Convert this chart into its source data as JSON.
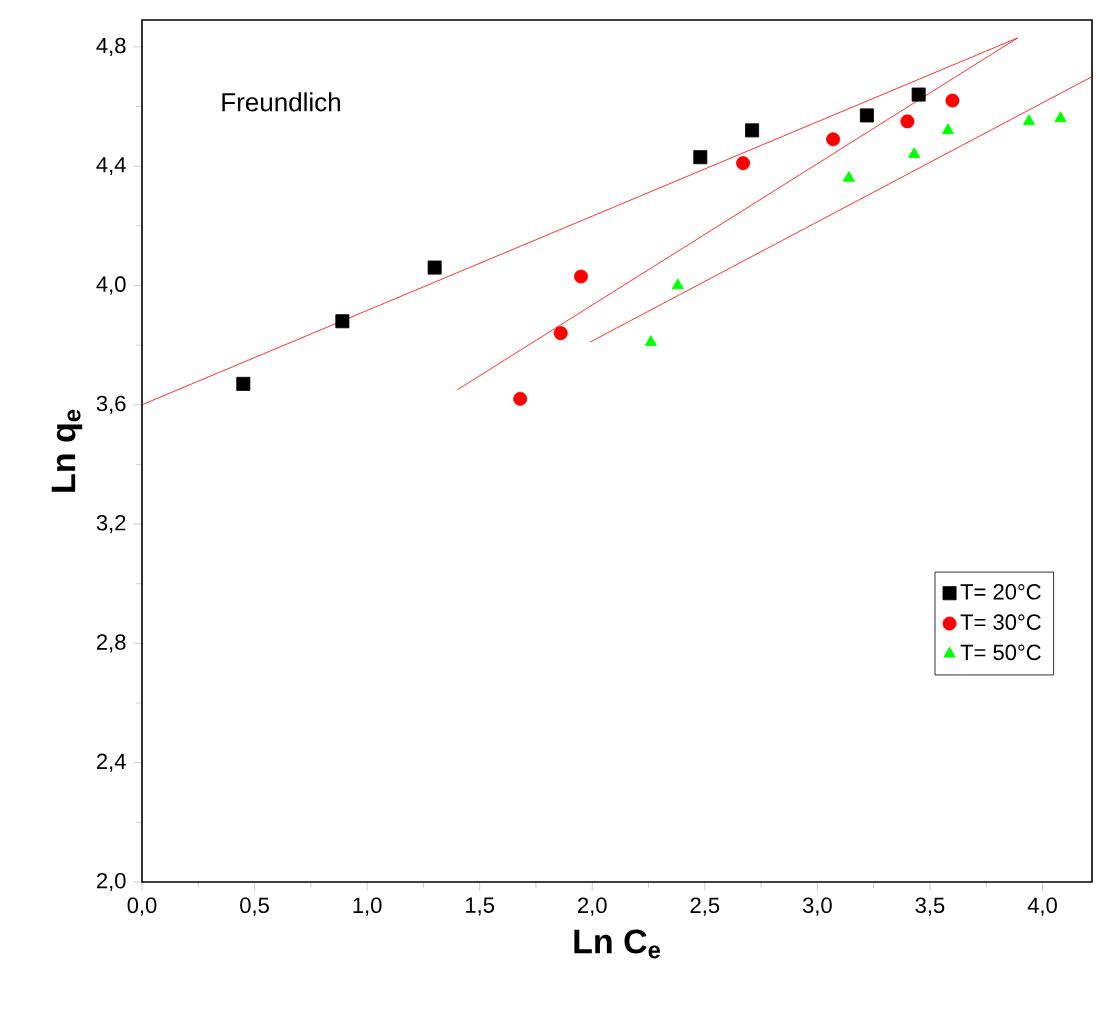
{
  "chart_data": {
    "type": "scatter",
    "xlabel": "Ln C$_{e}$",
    "ylabel": "Ln q$_{e}$",
    "annotations": [
      "Freundlich"
    ],
    "xlim": [
      0,
      4.22
    ],
    "ylim": [
      2.0,
      4.89
    ],
    "xticks": [
      {
        "value": 0,
        "label": "0,0"
      },
      {
        "value": 0.5,
        "label": "0,5"
      },
      {
        "value": 1,
        "label": "1,0"
      },
      {
        "value": 1.5,
        "label": "1,5"
      },
      {
        "value": 2,
        "label": "2,0"
      },
      {
        "value": 2.5,
        "label": "2,5"
      },
      {
        "value": 3,
        "label": "3,0"
      },
      {
        "value": 3.5,
        "label": "3,5"
      },
      {
        "value": 4,
        "label": "4,0"
      }
    ],
    "yticks": [
      {
        "value": 2.0,
        "label": "2,0"
      },
      {
        "value": 2.4,
        "label": "2,4"
      },
      {
        "value": 2.8,
        "label": "2,8"
      },
      {
        "value": 3.2,
        "label": "3,2"
      },
      {
        "value": 3.6,
        "label": "3,6"
      },
      {
        "value": 4.0,
        "label": "4,0"
      },
      {
        "value": 4.4,
        "label": "4,4"
      },
      {
        "value": 4.8,
        "label": "4,8"
      }
    ],
    "legend": "right",
    "grid": false,
    "series": [
      {
        "name": "T= 20°C",
        "color": "#000000",
        "marker": "square",
        "x": [
          0.45,
          0.89,
          1.3,
          2.48,
          2.71,
          3.22,
          3.45
        ],
        "values": [
          3.67,
          3.88,
          4.06,
          4.43,
          4.52,
          4.57,
          4.64
        ]
      },
      {
        "name": "T= 30°C",
        "color": "#ff0000",
        "marker": "circle",
        "x": [
          1.68,
          1.86,
          1.95,
          2.67,
          3.07,
          3.4,
          3.6
        ],
        "values": [
          3.62,
          3.84,
          4.03,
          4.41,
          4.49,
          4.55,
          4.62
        ]
      },
      {
        "name": "T= 50°C",
        "color": "#00ff00",
        "marker": "triangle",
        "x": [
          2.26,
          2.38,
          3.14,
          3.43,
          3.58,
          3.94,
          4.08
        ],
        "values": [
          3.81,
          4.0,
          4.36,
          4.44,
          4.52,
          4.55,
          4.56
        ]
      },
      {
        "type": "line",
        "color": "#ff0000",
        "marker": "none",
        "x": [
          0,
          3.89
        ],
        "values": [
          3.6,
          4.83
        ]
      },
      {
        "type": "line",
        "color": "#ff0000",
        "marker": "none",
        "x": [
          1.4,
          3.89
        ],
        "values": [
          3.65,
          4.83
        ]
      },
      {
        "type": "line",
        "color": "#ff0000",
        "marker": "none",
        "x": [
          1.99,
          4.22
        ],
        "values": [
          3.81,
          4.7
        ]
      }
    ]
  }
}
